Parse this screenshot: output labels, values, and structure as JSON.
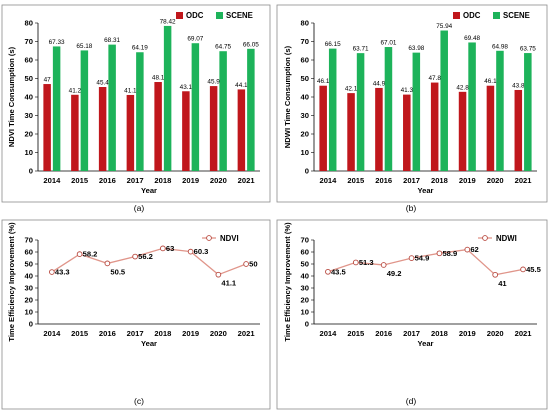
{
  "colors": {
    "odc": "#c0171c",
    "scene": "#1db35a",
    "line": "#e0958a",
    "marker_edge": "#b84a40",
    "frame": "#8c8c8c"
  },
  "chart_data": [
    {
      "type": "bar",
      "caption": "(a)",
      "categories": [
        "2014",
        "2015",
        "2016",
        "2017",
        "2018",
        "2019",
        "2020",
        "2021"
      ],
      "series": [
        {
          "name": "ODC",
          "values": [
            47,
            41.2,
            45.4,
            41.1,
            48.1,
            43.1,
            45.9,
            44.1
          ]
        },
        {
          "name": "SCENE",
          "values": [
            67.33,
            65.18,
            68.31,
            64.19,
            78.42,
            69.07,
            64.75,
            66.05
          ]
        }
      ],
      "value_labels": {
        "ODC": [
          "47",
          "41.2",
          "45.4",
          "41.1",
          "48.1",
          "43.1",
          "45.9",
          "44.1"
        ],
        "SCENE": [
          "67.33",
          "65.18",
          "68.31",
          "64.19",
          "78.42",
          "69.07",
          "64.75",
          "66.05"
        ]
      },
      "xlabel": "Year",
      "ylabel": "NDVI Time Consumption (s)",
      "ylim": [
        0,
        80
      ],
      "yticks": [
        "0",
        "10",
        "20",
        "30",
        "40",
        "50",
        "60",
        "70",
        "80"
      ],
      "legend": "top-right",
      "grid": false
    },
    {
      "type": "bar",
      "caption": "(b)",
      "categories": [
        "2014",
        "2015",
        "2016",
        "2017",
        "2018",
        "2019",
        "2020",
        "2021"
      ],
      "series": [
        {
          "name": "ODC",
          "values": [
            46.1,
            42.1,
            44.9,
            41.3,
            47.8,
            42.8,
            46.1,
            43.8
          ]
        },
        {
          "name": "SCENE",
          "values": [
            66.15,
            63.71,
            67.01,
            63.98,
            75.94,
            69.48,
            64.98,
            63.75
          ]
        }
      ],
      "value_labels": {
        "ODC": [
          "46.1",
          "42.1",
          "44.9",
          "41.3",
          "47.8",
          "42.8",
          "46.1",
          "43.8"
        ],
        "SCENE": [
          "66.15",
          "63.71",
          "67.01",
          "63.98",
          "75.94",
          "69.48",
          "64.98",
          "63.75"
        ]
      },
      "xlabel": "Year",
      "ylabel": "NDWI Time Consumption (s)",
      "ylim": [
        0,
        80
      ],
      "yticks": [
        "0",
        "10",
        "20",
        "30",
        "40",
        "50",
        "60",
        "70",
        "80"
      ],
      "legend": "top-right",
      "grid": false
    },
    {
      "type": "line",
      "caption": "(c)",
      "categories": [
        "2014",
        "2015",
        "2016",
        "2017",
        "2018",
        "2019",
        "2020",
        "2021"
      ],
      "series": [
        {
          "name": "NDVI",
          "values": [
            43.3,
            58.2,
            50.5,
            56.2,
            63,
            60.3,
            41.1,
            50
          ]
        }
      ],
      "value_labels": [
        "43.3",
        "58.2",
        "50.5",
        "56.2",
        "63",
        "60.3",
        "41.1",
        "50"
      ],
      "xlabel": "Year",
      "ylabel": "Time Efficiency Improvement (%)",
      "ylim": [
        0,
        70
      ],
      "yticks": [
        "0",
        "10",
        "20",
        "30",
        "40",
        "50",
        "60",
        "70"
      ],
      "legend": "top-right",
      "grid": false
    },
    {
      "type": "line",
      "caption": "(d)",
      "categories": [
        "2014",
        "2015",
        "2016",
        "2017",
        "2018",
        "2019",
        "2020",
        "2021"
      ],
      "series": [
        {
          "name": "NDWI",
          "values": [
            43.5,
            51.3,
            49.2,
            54.9,
            58.9,
            62,
            41,
            45.5
          ]
        }
      ],
      "value_labels": [
        "43.5",
        "51.3",
        "49.2",
        "54.9",
        "58.9",
        "62",
        "41",
        "45.5"
      ],
      "xlabel": "Year",
      "ylabel": "Time Efficiency Improvement (%)",
      "ylim": [
        0,
        70
      ],
      "yticks": [
        "0",
        "10",
        "20",
        "30",
        "40",
        "50",
        "60",
        "70"
      ],
      "legend": "top-right",
      "grid": false
    }
  ]
}
